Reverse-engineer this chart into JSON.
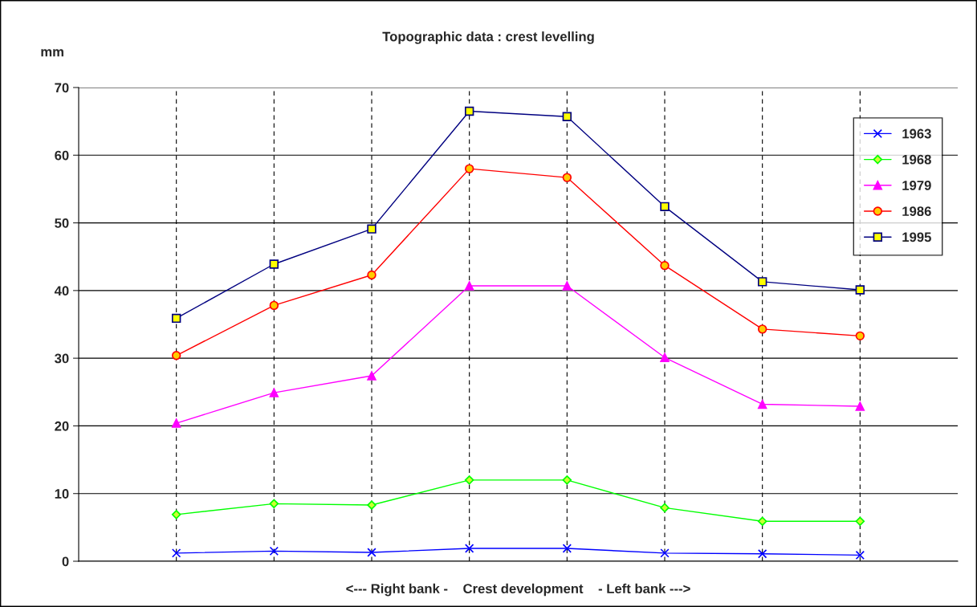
{
  "chart_data": {
    "type": "line",
    "title": "Topographic data : crest levelling",
    "ylabel": "mm",
    "xlabel": "<--- Right bank -    Crest development    - Left bank --->",
    "categories": [
      null,
      null,
      null,
      null,
      null,
      null,
      null,
      null
    ],
    "ylim": [
      0,
      70
    ],
    "yticks": [
      0,
      10,
      20,
      30,
      40,
      50,
      60,
      70
    ],
    "tick_labels": "y",
    "grid": true,
    "legend": "top right",
    "series": [
      {
        "name": "1963",
        "color": "#0000ff",
        "marker": "cross",
        "values": [
          1.2,
          1.5,
          1.3,
          1.9,
          1.9,
          1.2,
          1.1,
          0.9
        ]
      },
      {
        "name": "1968",
        "color": "#00ff00",
        "marker": "diamond",
        "values": [
          6.9,
          8.5,
          8.3,
          12.0,
          12.0,
          7.9,
          5.9,
          5.9
        ]
      },
      {
        "name": "1979",
        "color": "#ff00ff",
        "marker": "triangle",
        "values": [
          20.4,
          24.9,
          27.4,
          40.7,
          40.7,
          30.1,
          23.2,
          22.9
        ]
      },
      {
        "name": "1986",
        "color": "#ff0000",
        "marker": "circle",
        "values": [
          30.4,
          37.8,
          42.3,
          58.0,
          56.7,
          43.7,
          34.3,
          33.3
        ]
      },
      {
        "name": "1995",
        "color": "#000080",
        "marker": "square",
        "values": [
          35.9,
          43.9,
          49.1,
          66.5,
          65.7,
          52.4,
          41.3,
          40.1
        ]
      }
    ]
  }
}
